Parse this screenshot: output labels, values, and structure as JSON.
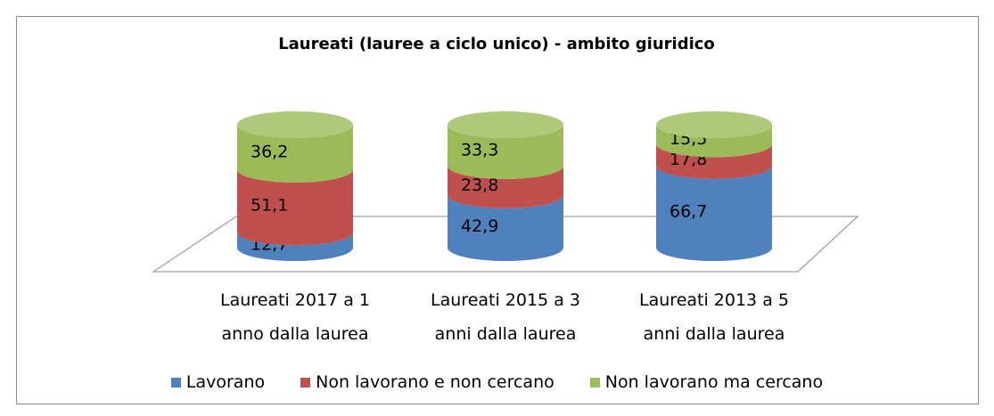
{
  "chart_data": {
    "type": "stacked-cylinder",
    "title": "Laureati (lauree a ciclo unico) - ambito giuridico",
    "categories": [
      "Laureati 2017 a 1 anno dalla laurea",
      "Laureati 2015 a 3 anni dalla laurea",
      "Laureati 2013 a 5 anni dalla laurea"
    ],
    "series": [
      {
        "name": "Lavorano",
        "color": "#4f81bd",
        "values": [
          12.7,
          42.9,
          66.7
        ],
        "value_labels": [
          "12,7",
          "42,9",
          "66,7"
        ]
      },
      {
        "name": "Non lavorano e non cercano",
        "color": "#c0504d",
        "values": [
          51.1,
          23.8,
          17.8
        ],
        "value_labels": [
          "51,1",
          "23,8",
          "17,8"
        ]
      },
      {
        "name": "Non lavorano ma cercano",
        "color": "#9bbb59",
        "values": [
          36.2,
          33.3,
          15.5
        ],
        "value_labels": [
          "36,2",
          "33,3",
          "15,5"
        ]
      }
    ],
    "legend": "bottom"
  }
}
